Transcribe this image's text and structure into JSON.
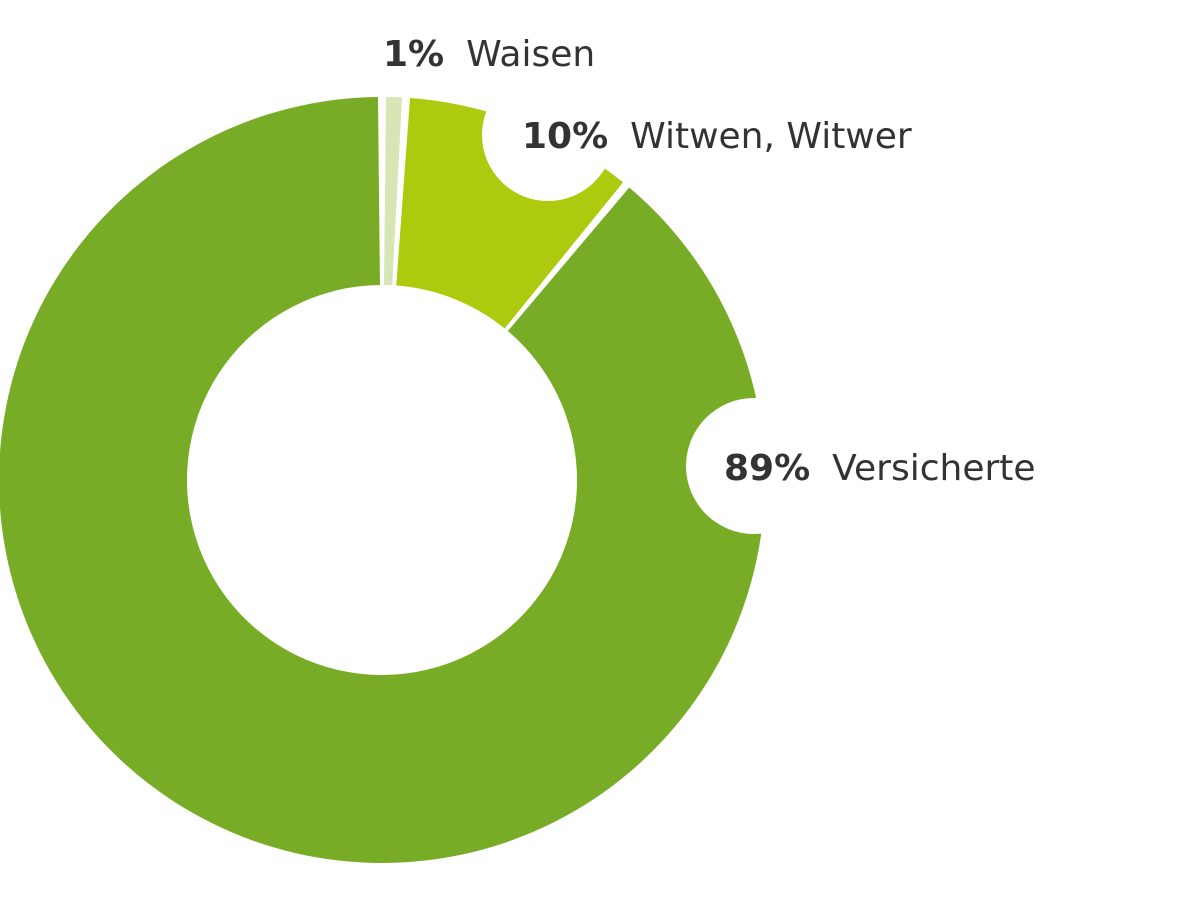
{
  "chart_data": {
    "type": "pie",
    "variant": "donut",
    "title": "",
    "categories": [
      "Versicherte",
      "Witwen, Witwer",
      "Waisen"
    ],
    "values": [
      89,
      10,
      1
    ],
    "value_labels": [
      "89%",
      "10%",
      "1%"
    ],
    "colors": [
      "#78ac27",
      "#adca0e",
      "#d7e6b4"
    ],
    "legend": "none"
  }
}
